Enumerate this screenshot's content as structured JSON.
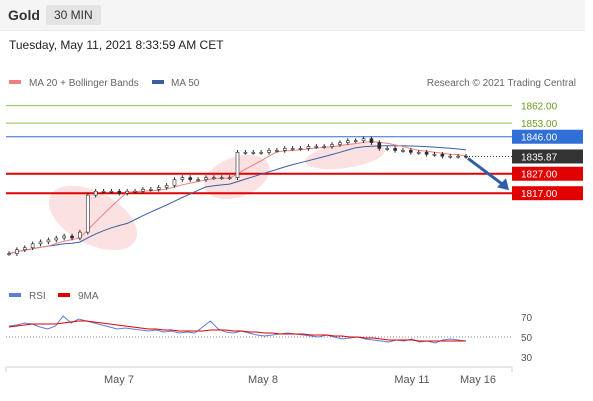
{
  "header": {
    "asset": "Gold",
    "timeframe": "30 MIN"
  },
  "datetime": "Tuesday, May 11, 2021 8:33:59 AM CET",
  "legend": {
    "ma20": {
      "label": "MA 20 + Bollinger Bands",
      "color": "#f08080"
    },
    "ma50": {
      "label": "MA 50",
      "color": "#3a5fa0"
    }
  },
  "credit": "Research © 2021 Trading Central",
  "rsi_legend": {
    "rsi": {
      "label": "RSI",
      "color": "#5b7fd6"
    },
    "ma9": {
      "label": "9MA",
      "color": "#e00000"
    }
  },
  "x_ticks": [
    "May 7",
    "May 8",
    "May 11",
    "May 16"
  ],
  "chart_data": [
    {
      "type": "line",
      "title": "",
      "ylim": [
        1775,
        1870
      ],
      "levels": [
        {
          "value": 1862.0,
          "label": "1862.00",
          "kind": "resistance",
          "color": "#8bc34a"
        },
        {
          "value": 1853.0,
          "label": "1853.00",
          "kind": "resistance",
          "color": "#8bc34a"
        },
        {
          "value": 1846.0,
          "label": "1846.00",
          "kind": "pivot",
          "color": "#2f6fd6"
        },
        {
          "value": 1835.87,
          "label": "1835.87",
          "kind": "last-price",
          "color": "#333333"
        },
        {
          "value": 1827.0,
          "label": "1827.00",
          "kind": "support",
          "color": "#e00000"
        },
        {
          "value": 1817.0,
          "label": "1817.00",
          "kind": "support",
          "color": "#e00000"
        }
      ],
      "price_series": [
        1786,
        1788,
        1789,
        1791,
        1792,
        1793,
        1794,
        1795,
        1794,
        1797,
        1816,
        1818,
        1818,
        1818,
        1817,
        1818,
        1818,
        1819,
        1819,
        1820,
        1821,
        1824,
        1825,
        1824,
        1824,
        1825,
        1825,
        1825,
        1825,
        1838,
        1838,
        1838,
        1838,
        1839,
        1839,
        1840,
        1840,
        1840,
        1841,
        1841,
        1841,
        1842,
        1843,
        1844,
        1844,
        1845,
        1843,
        1840,
        1840,
        1839,
        1839,
        1838,
        1838,
        1837,
        1837,
        1836,
        1836,
        1836,
        1835.87
      ],
      "forecast": {
        "from": 1835.87,
        "to": 1817.0,
        "direction": "down"
      }
    },
    {
      "type": "line",
      "title": "",
      "ylim": [
        30,
        70
      ],
      "y_ticks": [
        70,
        50,
        30
      ],
      "series": [
        {
          "name": "RSI",
          "values": [
            61,
            62,
            64,
            63,
            60,
            58,
            61,
            71,
            64,
            68,
            66,
            64,
            62,
            60,
            58,
            59,
            58,
            57,
            56,
            57,
            55,
            56,
            54,
            55,
            54,
            60,
            66,
            58,
            55,
            54,
            56,
            54,
            52,
            51,
            52,
            53,
            54,
            53,
            52,
            51,
            50,
            52,
            50,
            48,
            49,
            50,
            48,
            47,
            46,
            45,
            47,
            46,
            48,
            45,
            46,
            44,
            47,
            48,
            47,
            46
          ]
        },
        {
          "name": "9MA",
          "values": [
            60,
            61,
            62,
            63,
            63,
            63,
            63,
            64,
            65,
            66,
            66,
            65,
            64,
            63,
            62,
            61,
            60,
            59,
            58,
            58,
            57,
            57,
            56,
            56,
            56,
            56,
            57,
            57,
            57,
            56,
            56,
            55,
            55,
            54,
            54,
            53,
            53,
            53,
            53,
            52,
            52,
            52,
            51,
            51,
            50,
            50,
            49,
            49,
            48,
            47,
            47,
            47,
            47,
            46,
            46,
            46,
            46,
            46,
            46,
            46
          ]
        }
      ]
    }
  ]
}
